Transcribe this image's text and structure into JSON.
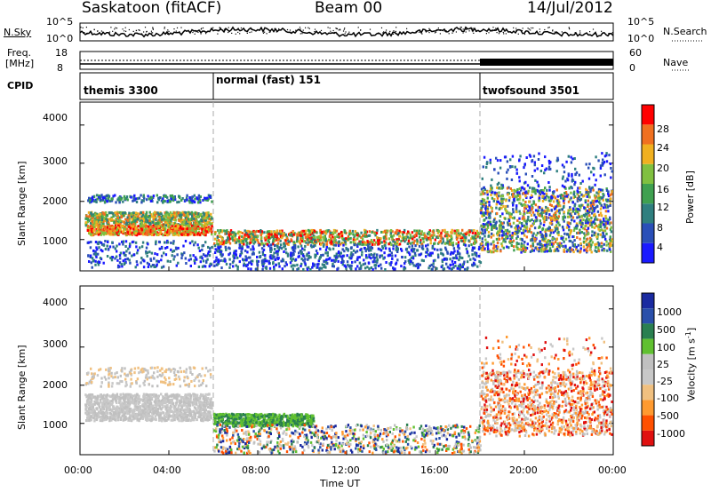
{
  "header": {
    "station": "Saskatoon  (fitACF)",
    "beam": "Beam 00",
    "date": "14/Jul/2012"
  },
  "noise_panel": {
    "left_label": "N.Sky",
    "right_label": "N.Search",
    "left_ticks": [
      "10^5",
      "10^0"
    ],
    "right_ticks": [
      "10^5",
      "10^0"
    ]
  },
  "freq_panel": {
    "left_label_1": "Freq.",
    "left_label_2": "[MHz]",
    "right_label": "Nave",
    "left_ticks": [
      "18",
      "8"
    ],
    "right_ticks": [
      "60",
      "0"
    ]
  },
  "cpid": {
    "label": "CPID",
    "segments": [
      {
        "name": "themis 3300",
        "start_hour": 0,
        "end_hour": 6
      },
      {
        "name": "normal (fast) 151",
        "start_hour": 6,
        "end_hour": 18
      },
      {
        "name": "twofsound 3501",
        "start_hour": 18,
        "end_hour": 24
      }
    ]
  },
  "colors": {
    "power": [
      "#1a1aff",
      "#2a4fb8",
      "#2f7f7f",
      "#3fa050",
      "#80c040",
      "#f0b020",
      "#f07020",
      "#ff0000"
    ],
    "velocity": [
      "#e01010",
      "#ff5000",
      "#ff9a30",
      "#f0c080",
      "#c8c8c8",
      "#c0c0c0",
      "#60c030",
      "#2a7f50",
      "#2a4faa",
      "#1a2aa0"
    ]
  },
  "chart_data": [
    {
      "type": "heatmap",
      "title": "Power",
      "ylabel": "Slant Range [km]",
      "xlabel": "Time UT",
      "x_ticks": [
        "00:00",
        "04:00",
        "08:00",
        "12:00",
        "16:00",
        "20:00",
        "00:00"
      ],
      "x_range_hours": [
        0,
        24
      ],
      "y_ticks": [
        "1000",
        "2000",
        "3000",
        "4000"
      ],
      "y_range_km": [
        180,
        4600
      ],
      "colorbar_label": "Power [dB]",
      "colorbar_ticks": [
        "4",
        "8",
        "12",
        "16",
        "20",
        "24",
        "28"
      ],
      "colorbar_range": [
        0,
        32
      ]
    },
    {
      "type": "heatmap",
      "title": "Velocity",
      "ylabel": "Slant Range [km]",
      "xlabel": "Time UT",
      "x_ticks": [
        "00:00",
        "04:00",
        "08:00",
        "12:00",
        "16:00",
        "20:00",
        "00:00"
      ],
      "x_range_hours": [
        0,
        24
      ],
      "y_ticks": [
        "1000",
        "2000",
        "3000",
        "4000"
      ],
      "y_range_km": [
        180,
        4600
      ],
      "colorbar_label": "Velocity [m s-1]",
      "colorbar_label_main": "Velocity  [m s",
      "colorbar_label_sup": "-1",
      "colorbar_label_end": "]",
      "colorbar_ticks": [
        "1000",
        "500",
        "100",
        "25",
        "-25",
        "-100",
        "-500",
        "-1000"
      ]
    }
  ]
}
